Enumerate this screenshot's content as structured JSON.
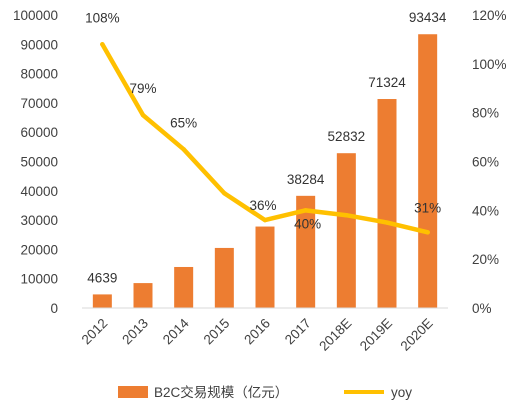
{
  "chart_data": {
    "type": "bar",
    "categories": [
      "2012",
      "2013",
      "2014",
      "2015",
      "2016",
      "2017",
      "2018E",
      "2019E",
      "2020E"
    ],
    "series": [
      {
        "name": "B2C交易规模（亿元）",
        "type": "bar",
        "axis": "left",
        "color": "#ED7D31",
        "values": [
          4639,
          8500,
          14000,
          20500,
          27800,
          38284,
          52832,
          71324,
          93434
        ],
        "labels": [
          "4639",
          "",
          "",
          "",
          "",
          "38284",
          "52832",
          "71324",
          "93434"
        ]
      },
      {
        "name": "yoy",
        "type": "line",
        "axis": "right",
        "color": "#FFC000",
        "values": [
          108,
          79,
          65,
          47,
          36,
          40,
          38,
          35,
          31
        ],
        "labels": [
          "108%",
          "79%",
          "65%",
          "",
          "36%",
          "40%",
          "",
          "",
          "31%"
        ]
      }
    ],
    "y_left": {
      "ylim": [
        0,
        100000
      ],
      "ticks": [
        "0",
        "10000",
        "20000",
        "30000",
        "40000",
        "50000",
        "60000",
        "70000",
        "80000",
        "90000",
        "100000"
      ]
    },
    "y_right": {
      "ylim": [
        0,
        120
      ],
      "ticks": [
        "0%",
        "20%",
        "40%",
        "60%",
        "80%",
        "100%",
        "120%"
      ]
    },
    "grid": false,
    "legend": "bottom",
    "xlabel": "",
    "ylabel": ""
  }
}
